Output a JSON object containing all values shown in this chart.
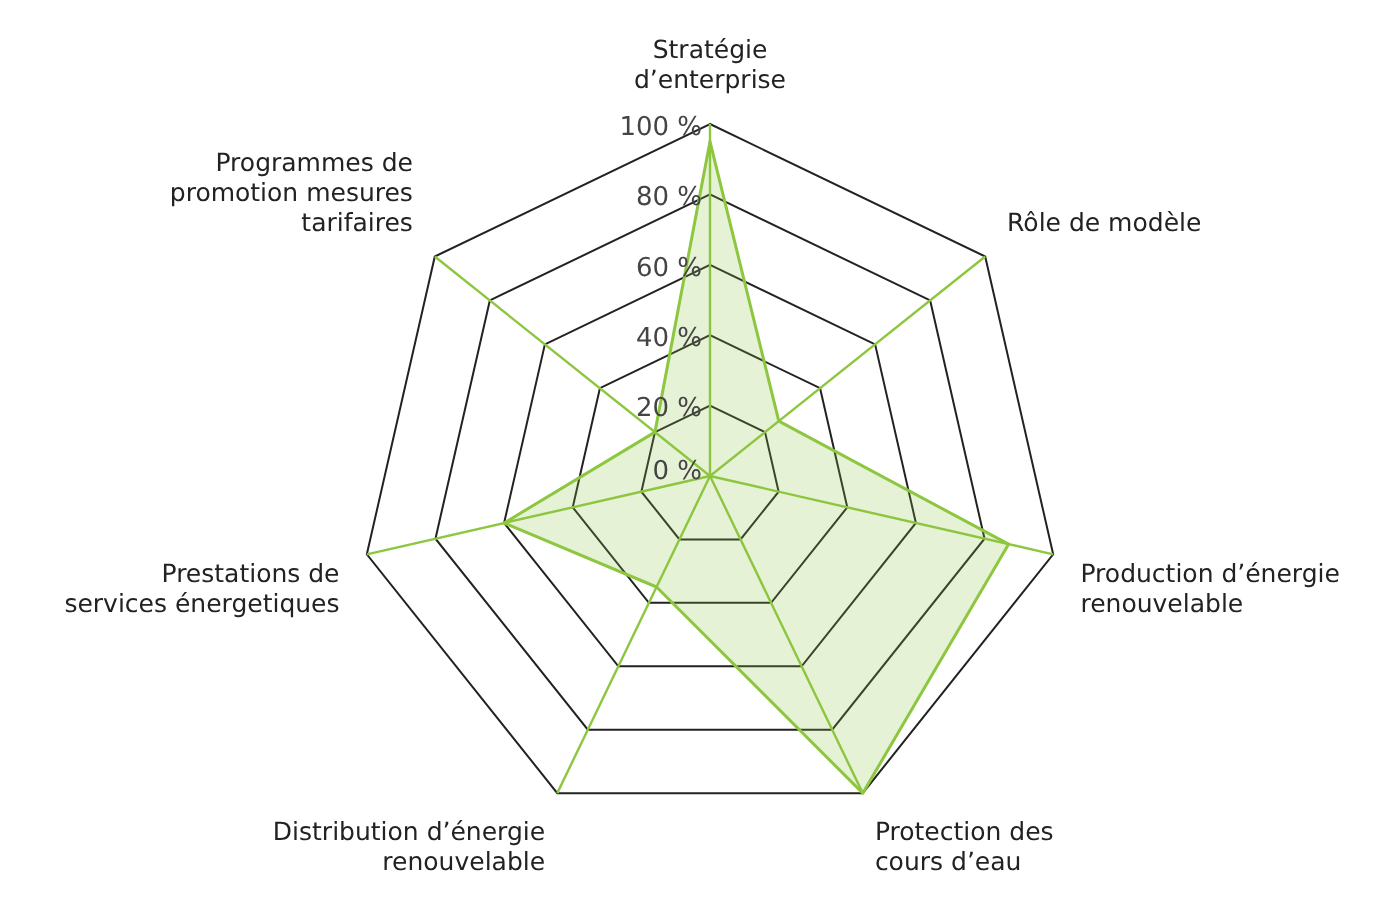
{
  "chart_data": {
    "type": "radar",
    "categories": [
      "Stratégie\nd’enterprise",
      "Rôle de modèle",
      "Production d’énergie\nrenouvelable",
      "Protection des\ncours d’eau",
      "Distribution d’énergie\nrenouvelable",
      "Prestations de\nservices énergetiques",
      "Programmes de\npromotion mesures\ntarifaires"
    ],
    "series": [
      {
        "color": "#8dc63f",
        "values": [
          95,
          25,
          87,
          100,
          35,
          60,
          20
        ]
      }
    ],
    "ylim": [
      0,
      100
    ],
    "yticks": [
      {
        "value": 0,
        "label": "0 %"
      },
      {
        "value": 20,
        "label": "20 %"
      },
      {
        "value": 40,
        "label": "40 %"
      },
      {
        "value": 60,
        "label": "60 %"
      },
      {
        "value": 80,
        "label": "80 %"
      },
      {
        "value": 100,
        "label": "100 %"
      }
    ],
    "grid": true,
    "legend": false,
    "marker": "none"
  }
}
